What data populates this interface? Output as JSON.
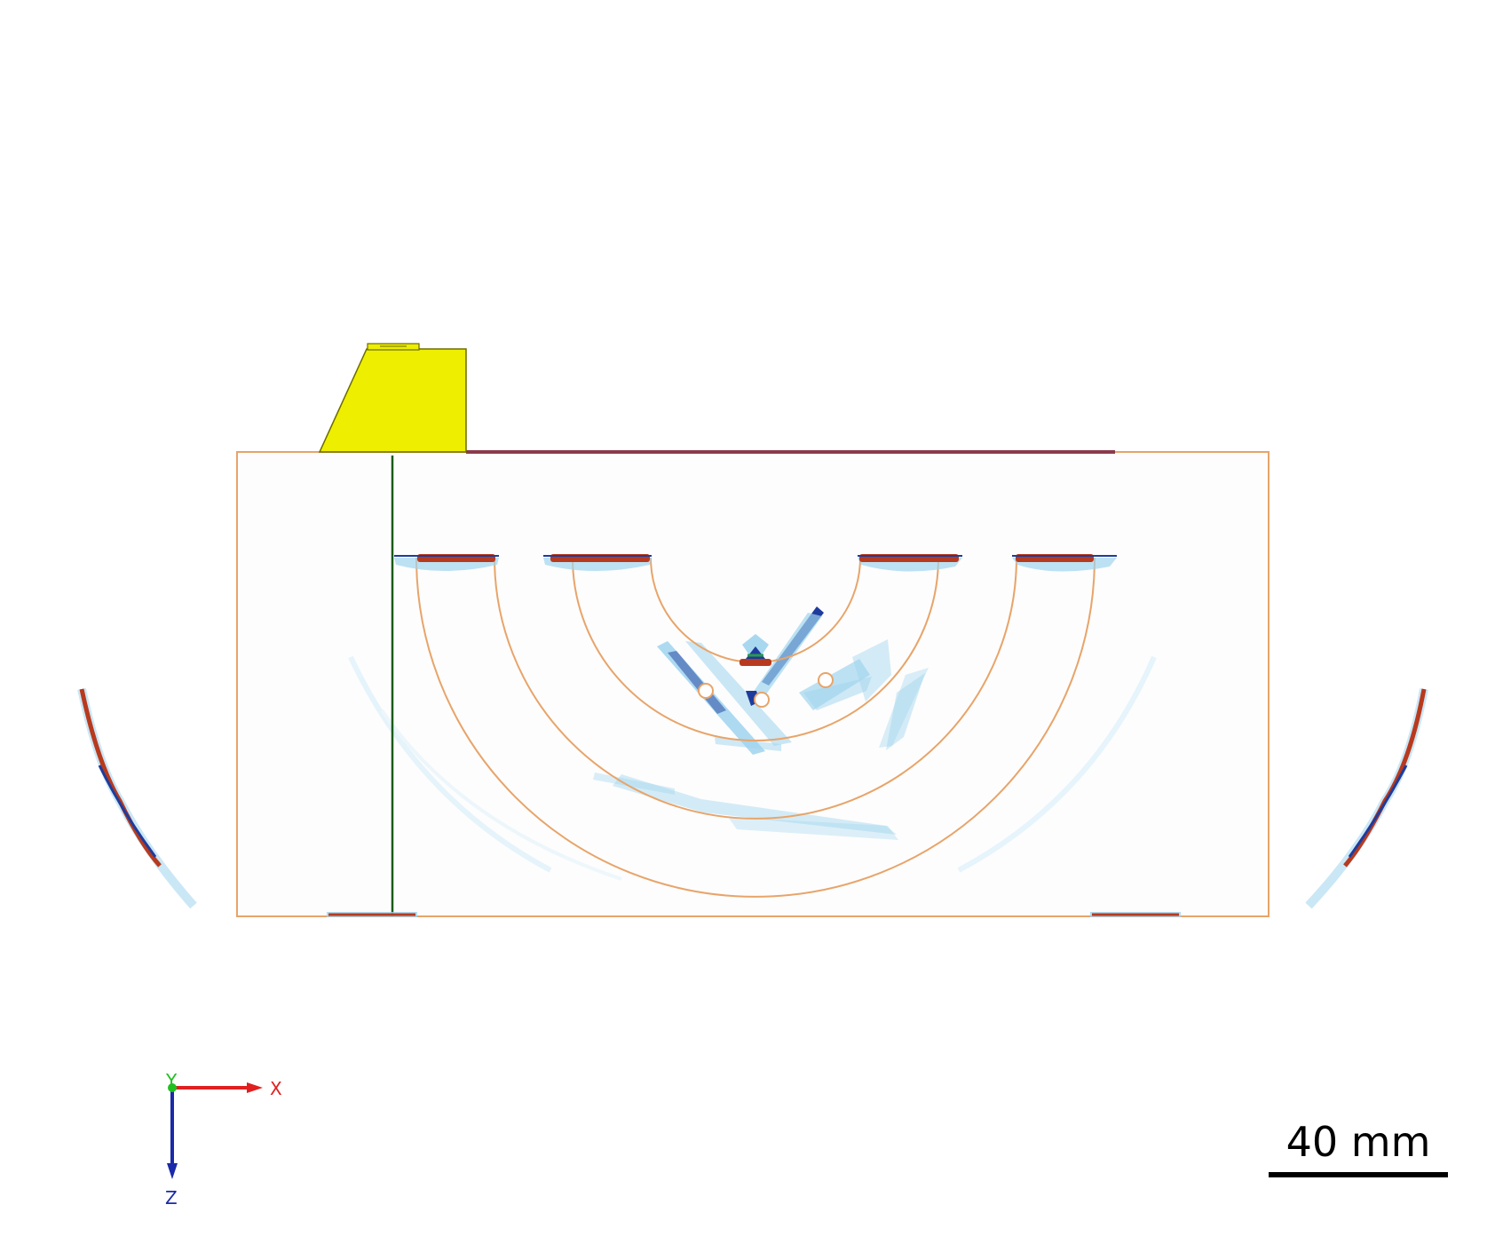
{
  "colors": {
    "outline": "#e8a46a",
    "wedge": "#eeee00",
    "wedge_edge": "#6b6b00",
    "surface_line": "#8b3a4a",
    "scan_line": "#1a5c1a",
    "echo_hot": "#b83a1e",
    "echo_cold": "#1e3c9c",
    "echo_light": "#9fd4ee",
    "axis_x": "#e02020",
    "axis_y": "#20c020",
    "axis_z": "#1a2aa8"
  },
  "icons": {
    "axis_triad": "axis-triad-icon"
  },
  "axes": {
    "x_label": "X",
    "y_label": "Y",
    "z_label": "Z"
  },
  "scale_bar": {
    "label": "40 mm"
  }
}
